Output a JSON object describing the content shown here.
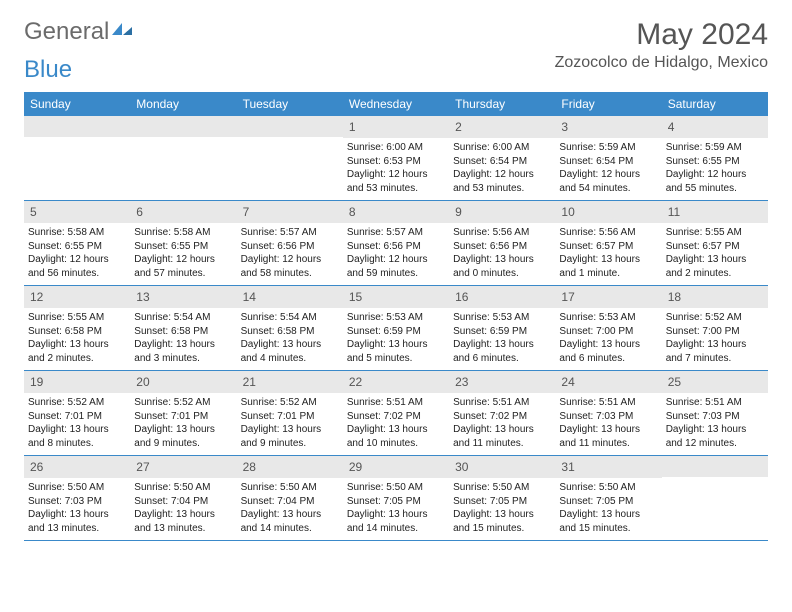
{
  "logo": {
    "text1": "General",
    "text2": "Blue"
  },
  "title": "May 2024",
  "location": "Zozocolco de Hidalgo, Mexico",
  "weekdays": [
    "Sunday",
    "Monday",
    "Tuesday",
    "Wednesday",
    "Thursday",
    "Friday",
    "Saturday"
  ],
  "colors": {
    "header_bg": "#3a89c9",
    "daynum_bg": "#e8e8e8",
    "text": "#555555"
  },
  "weeks": [
    [
      {
        "n": "",
        "sr": "",
        "ss": "",
        "dl1": "",
        "dl2": ""
      },
      {
        "n": "",
        "sr": "",
        "ss": "",
        "dl1": "",
        "dl2": ""
      },
      {
        "n": "",
        "sr": "",
        "ss": "",
        "dl1": "",
        "dl2": ""
      },
      {
        "n": "1",
        "sr": "Sunrise: 6:00 AM",
        "ss": "Sunset: 6:53 PM",
        "dl1": "Daylight: 12 hours",
        "dl2": "and 53 minutes."
      },
      {
        "n": "2",
        "sr": "Sunrise: 6:00 AM",
        "ss": "Sunset: 6:54 PM",
        "dl1": "Daylight: 12 hours",
        "dl2": "and 53 minutes."
      },
      {
        "n": "3",
        "sr": "Sunrise: 5:59 AM",
        "ss": "Sunset: 6:54 PM",
        "dl1": "Daylight: 12 hours",
        "dl2": "and 54 minutes."
      },
      {
        "n": "4",
        "sr": "Sunrise: 5:59 AM",
        "ss": "Sunset: 6:55 PM",
        "dl1": "Daylight: 12 hours",
        "dl2": "and 55 minutes."
      }
    ],
    [
      {
        "n": "5",
        "sr": "Sunrise: 5:58 AM",
        "ss": "Sunset: 6:55 PM",
        "dl1": "Daylight: 12 hours",
        "dl2": "and 56 minutes."
      },
      {
        "n": "6",
        "sr": "Sunrise: 5:58 AM",
        "ss": "Sunset: 6:55 PM",
        "dl1": "Daylight: 12 hours",
        "dl2": "and 57 minutes."
      },
      {
        "n": "7",
        "sr": "Sunrise: 5:57 AM",
        "ss": "Sunset: 6:56 PM",
        "dl1": "Daylight: 12 hours",
        "dl2": "and 58 minutes."
      },
      {
        "n": "8",
        "sr": "Sunrise: 5:57 AM",
        "ss": "Sunset: 6:56 PM",
        "dl1": "Daylight: 12 hours",
        "dl2": "and 59 minutes."
      },
      {
        "n": "9",
        "sr": "Sunrise: 5:56 AM",
        "ss": "Sunset: 6:56 PM",
        "dl1": "Daylight: 13 hours",
        "dl2": "and 0 minutes."
      },
      {
        "n": "10",
        "sr": "Sunrise: 5:56 AM",
        "ss": "Sunset: 6:57 PM",
        "dl1": "Daylight: 13 hours",
        "dl2": "and 1 minute."
      },
      {
        "n": "11",
        "sr": "Sunrise: 5:55 AM",
        "ss": "Sunset: 6:57 PM",
        "dl1": "Daylight: 13 hours",
        "dl2": "and 2 minutes."
      }
    ],
    [
      {
        "n": "12",
        "sr": "Sunrise: 5:55 AM",
        "ss": "Sunset: 6:58 PM",
        "dl1": "Daylight: 13 hours",
        "dl2": "and 2 minutes."
      },
      {
        "n": "13",
        "sr": "Sunrise: 5:54 AM",
        "ss": "Sunset: 6:58 PM",
        "dl1": "Daylight: 13 hours",
        "dl2": "and 3 minutes."
      },
      {
        "n": "14",
        "sr": "Sunrise: 5:54 AM",
        "ss": "Sunset: 6:58 PM",
        "dl1": "Daylight: 13 hours",
        "dl2": "and 4 minutes."
      },
      {
        "n": "15",
        "sr": "Sunrise: 5:53 AM",
        "ss": "Sunset: 6:59 PM",
        "dl1": "Daylight: 13 hours",
        "dl2": "and 5 minutes."
      },
      {
        "n": "16",
        "sr": "Sunrise: 5:53 AM",
        "ss": "Sunset: 6:59 PM",
        "dl1": "Daylight: 13 hours",
        "dl2": "and 6 minutes."
      },
      {
        "n": "17",
        "sr": "Sunrise: 5:53 AM",
        "ss": "Sunset: 7:00 PM",
        "dl1": "Daylight: 13 hours",
        "dl2": "and 6 minutes."
      },
      {
        "n": "18",
        "sr": "Sunrise: 5:52 AM",
        "ss": "Sunset: 7:00 PM",
        "dl1": "Daylight: 13 hours",
        "dl2": "and 7 minutes."
      }
    ],
    [
      {
        "n": "19",
        "sr": "Sunrise: 5:52 AM",
        "ss": "Sunset: 7:01 PM",
        "dl1": "Daylight: 13 hours",
        "dl2": "and 8 minutes."
      },
      {
        "n": "20",
        "sr": "Sunrise: 5:52 AM",
        "ss": "Sunset: 7:01 PM",
        "dl1": "Daylight: 13 hours",
        "dl2": "and 9 minutes."
      },
      {
        "n": "21",
        "sr": "Sunrise: 5:52 AM",
        "ss": "Sunset: 7:01 PM",
        "dl1": "Daylight: 13 hours",
        "dl2": "and 9 minutes."
      },
      {
        "n": "22",
        "sr": "Sunrise: 5:51 AM",
        "ss": "Sunset: 7:02 PM",
        "dl1": "Daylight: 13 hours",
        "dl2": "and 10 minutes."
      },
      {
        "n": "23",
        "sr": "Sunrise: 5:51 AM",
        "ss": "Sunset: 7:02 PM",
        "dl1": "Daylight: 13 hours",
        "dl2": "and 11 minutes."
      },
      {
        "n": "24",
        "sr": "Sunrise: 5:51 AM",
        "ss": "Sunset: 7:03 PM",
        "dl1": "Daylight: 13 hours",
        "dl2": "and 11 minutes."
      },
      {
        "n": "25",
        "sr": "Sunrise: 5:51 AM",
        "ss": "Sunset: 7:03 PM",
        "dl1": "Daylight: 13 hours",
        "dl2": "and 12 minutes."
      }
    ],
    [
      {
        "n": "26",
        "sr": "Sunrise: 5:50 AM",
        "ss": "Sunset: 7:03 PM",
        "dl1": "Daylight: 13 hours",
        "dl2": "and 13 minutes."
      },
      {
        "n": "27",
        "sr": "Sunrise: 5:50 AM",
        "ss": "Sunset: 7:04 PM",
        "dl1": "Daylight: 13 hours",
        "dl2": "and 13 minutes."
      },
      {
        "n": "28",
        "sr": "Sunrise: 5:50 AM",
        "ss": "Sunset: 7:04 PM",
        "dl1": "Daylight: 13 hours",
        "dl2": "and 14 minutes."
      },
      {
        "n": "29",
        "sr": "Sunrise: 5:50 AM",
        "ss": "Sunset: 7:05 PM",
        "dl1": "Daylight: 13 hours",
        "dl2": "and 14 minutes."
      },
      {
        "n": "30",
        "sr": "Sunrise: 5:50 AM",
        "ss": "Sunset: 7:05 PM",
        "dl1": "Daylight: 13 hours",
        "dl2": "and 15 minutes."
      },
      {
        "n": "31",
        "sr": "Sunrise: 5:50 AM",
        "ss": "Sunset: 7:05 PM",
        "dl1": "Daylight: 13 hours",
        "dl2": "and 15 minutes."
      },
      {
        "n": "",
        "sr": "",
        "ss": "",
        "dl1": "",
        "dl2": ""
      }
    ]
  ]
}
